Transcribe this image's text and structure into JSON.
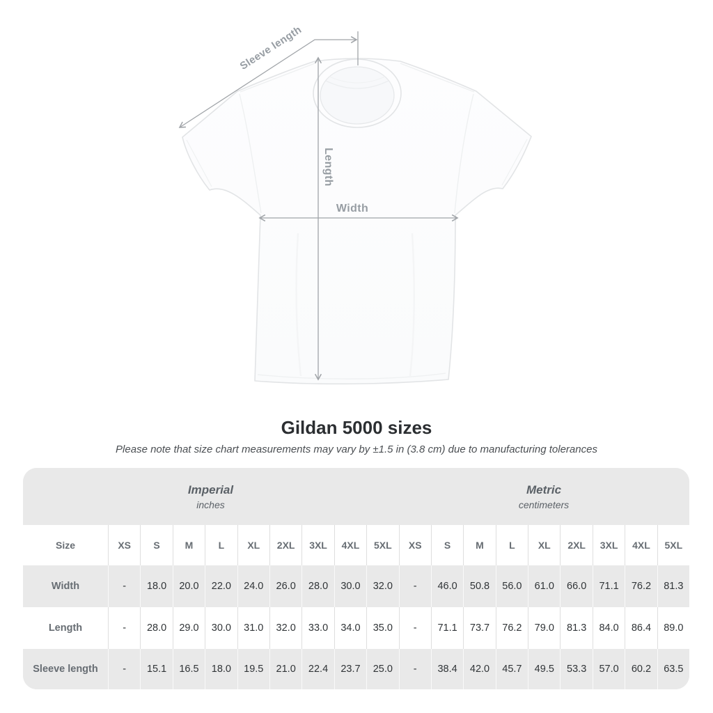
{
  "diagram": {
    "sleeve_length_label": "Sleeve length",
    "length_label": "Length",
    "width_label": "Width"
  },
  "header": {
    "title": "Gildan 5000 sizes",
    "subtitle": "Please note that size chart measurements may vary by ±1.5 in (3.8 cm) due to manufacturing tolerances"
  },
  "chart_data": {
    "type": "table",
    "title": "Gildan 5000 sizes",
    "row_header": "Size",
    "unit_groups": [
      {
        "name": "Imperial",
        "unit": "inches",
        "sizes": [
          "XS",
          "S",
          "M",
          "L",
          "XL",
          "2XL",
          "3XL",
          "4XL",
          "5XL"
        ]
      },
      {
        "name": "Metric",
        "unit": "centimeters",
        "sizes": [
          "XS",
          "S",
          "M",
          "L",
          "XL",
          "2XL",
          "3XL",
          "4XL",
          "5XL"
        ]
      }
    ],
    "rows": [
      {
        "label": "Width",
        "imperial": [
          "-",
          "18.0",
          "20.0",
          "22.0",
          "24.0",
          "26.0",
          "28.0",
          "30.0",
          "32.0"
        ],
        "metric": [
          "-",
          "46.0",
          "50.8",
          "56.0",
          "61.0",
          "66.0",
          "71.1",
          "76.2",
          "81.3"
        ]
      },
      {
        "label": "Length",
        "imperial": [
          "-",
          "28.0",
          "29.0",
          "30.0",
          "31.0",
          "32.0",
          "33.0",
          "34.0",
          "35.0"
        ],
        "metric": [
          "-",
          "71.1",
          "73.7",
          "76.2",
          "79.0",
          "81.3",
          "84.0",
          "86.4",
          "89.0"
        ]
      },
      {
        "label": "Sleeve length",
        "imperial": [
          "-",
          "15.1",
          "16.5",
          "18.0",
          "19.5",
          "21.0",
          "22.4",
          "23.7",
          "25.0"
        ],
        "metric": [
          "-",
          "38.4",
          "42.0",
          "45.7",
          "49.5",
          "53.3",
          "57.0",
          "60.2",
          "63.5"
        ]
      }
    ]
  },
  "colors": {
    "table_band_gray": "#e9e9e9",
    "row_stripe_gray": "#e9e9e9",
    "measure_line_gray": "#a0a4a8",
    "measure_label_gray": "#979da3",
    "header_text_gray": "#676d73",
    "title_dark": "#2b2e31"
  }
}
